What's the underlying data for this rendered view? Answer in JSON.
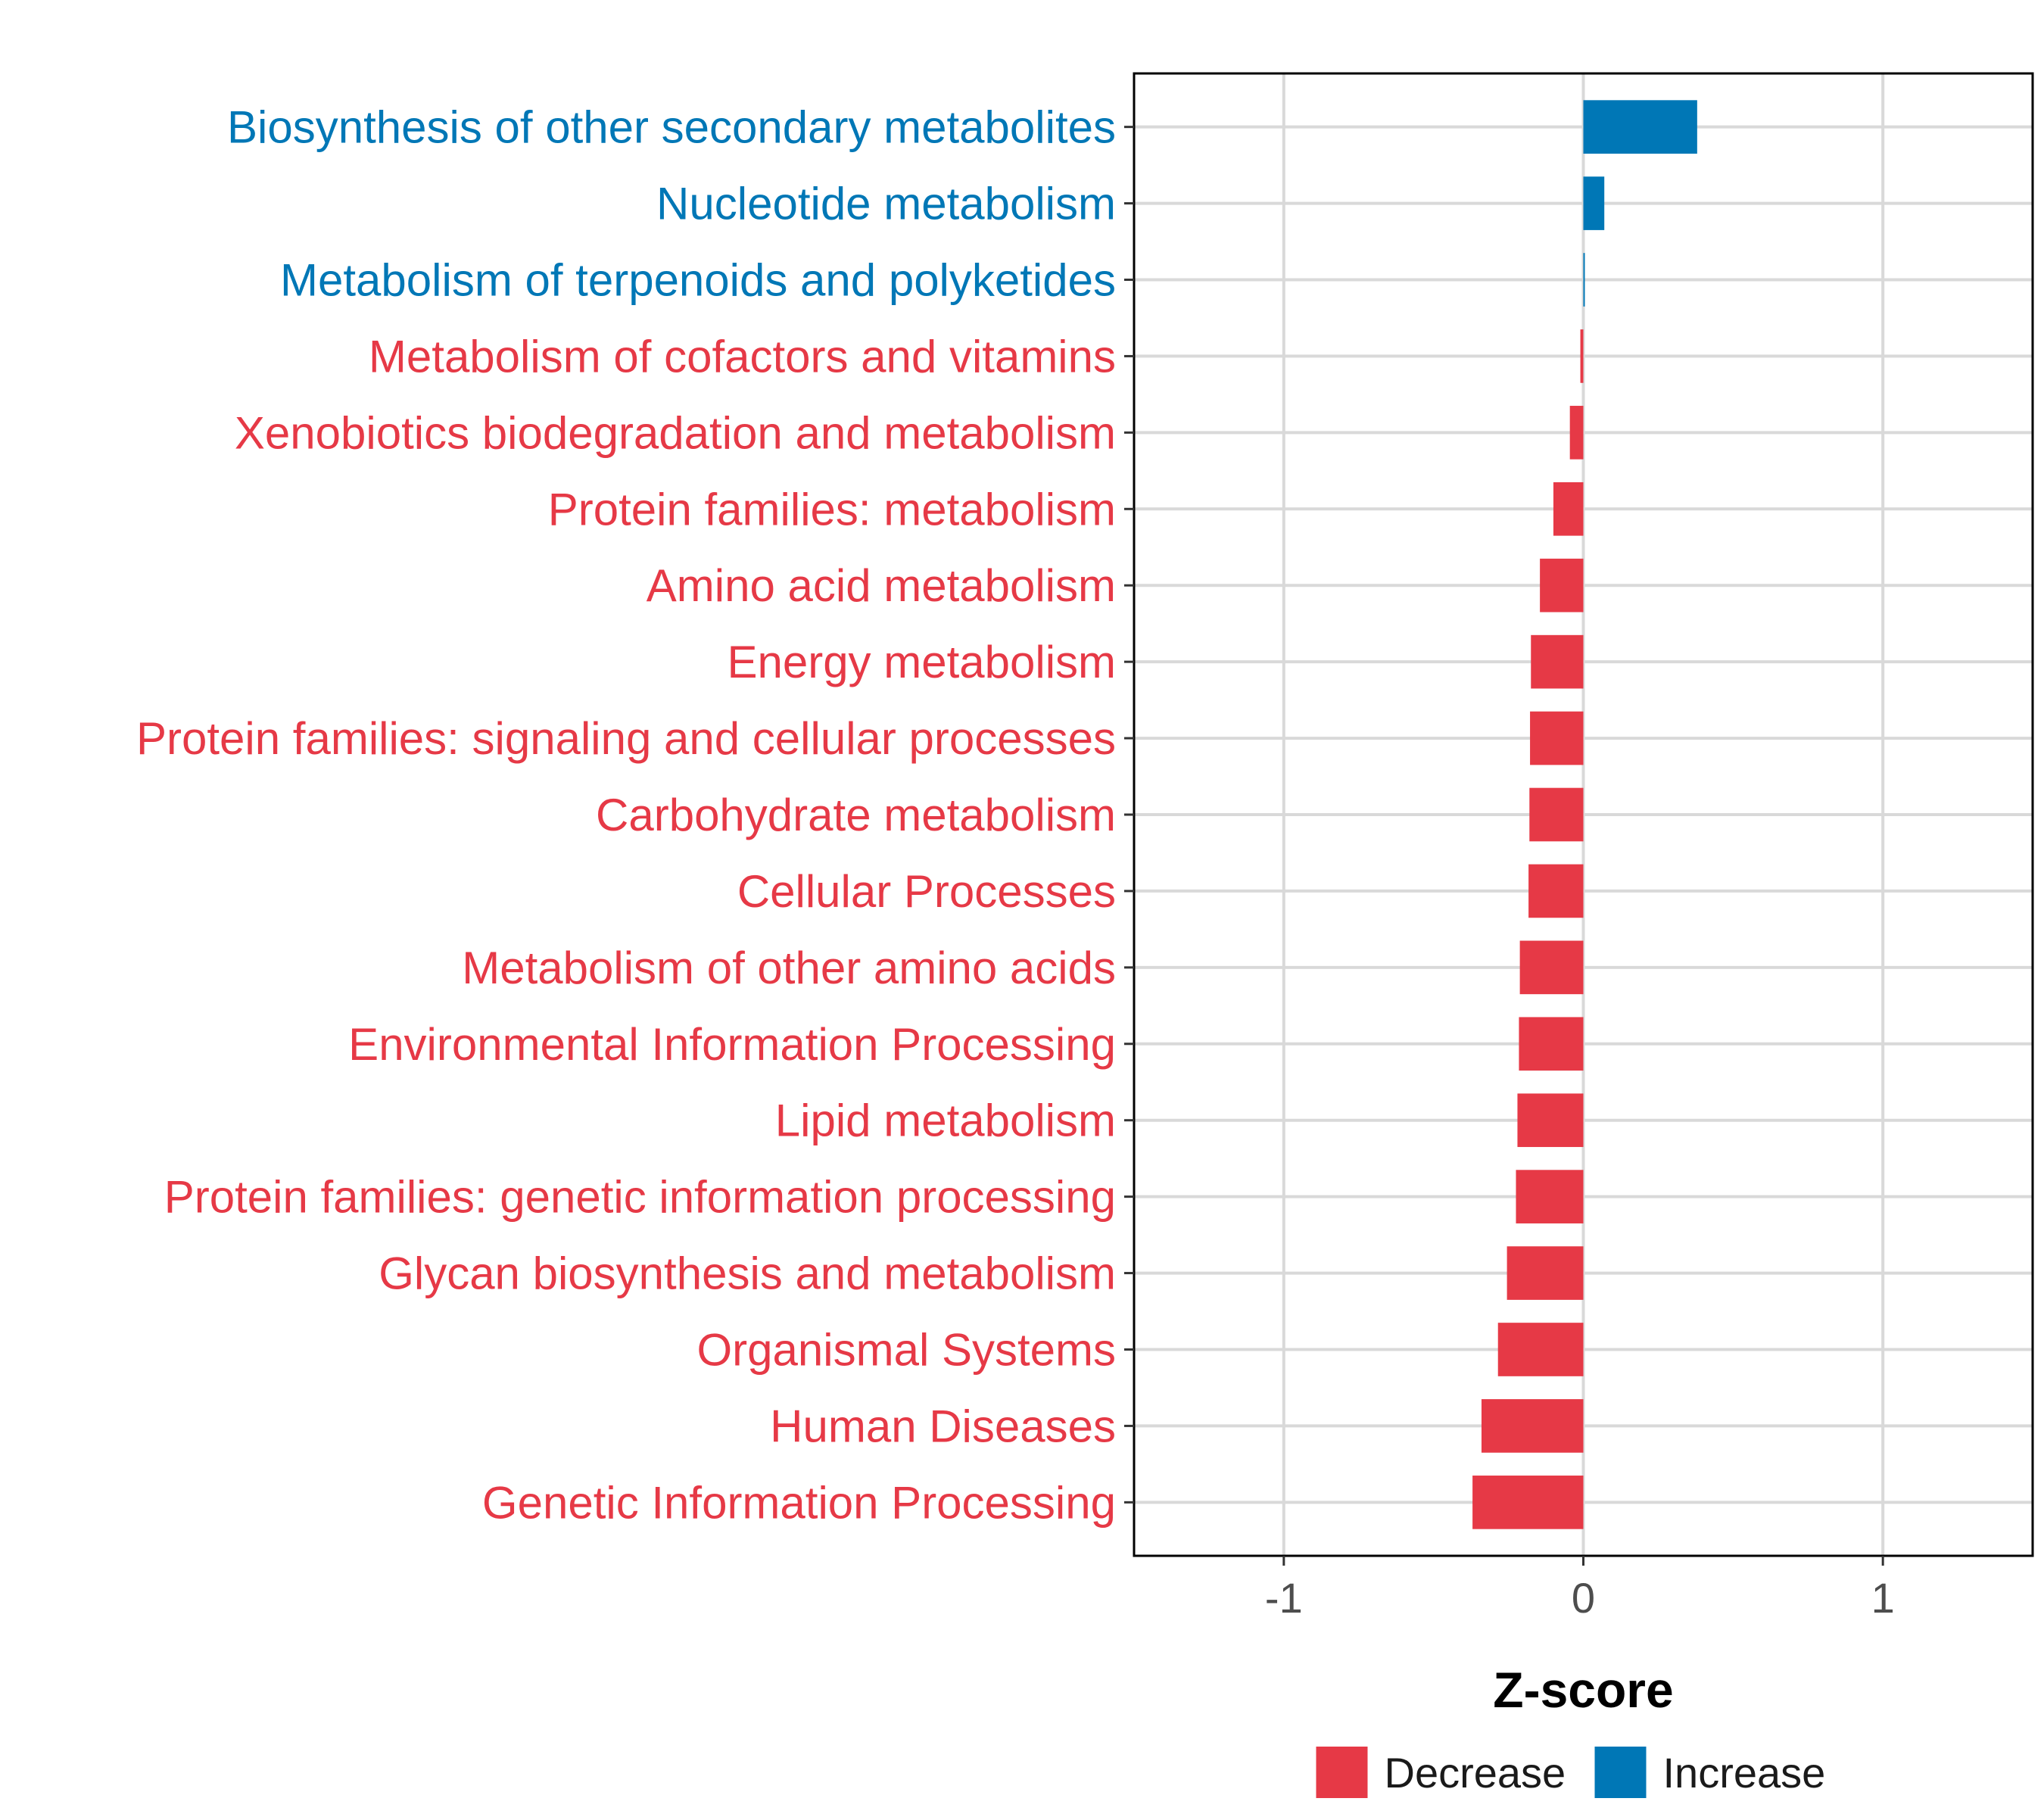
{
  "chart_data": {
    "type": "bar",
    "orientation": "horizontal",
    "xlabel": "Z-score",
    "xlim": [
      -1.5,
      1.5
    ],
    "xticks": [
      -1,
      0,
      1
    ],
    "xtick_labels": [
      "-1",
      "0",
      "1"
    ],
    "grid": true,
    "legend_position": "bottom",
    "colors": {
      "Decrease": "#e63946",
      "Increase": "#0077b6"
    },
    "legend": [
      {
        "name": "Decrease",
        "color": "#e63946"
      },
      {
        "name": "Increase",
        "color": "#0077b6"
      }
    ],
    "categories": [
      "Biosynthesis of other secondary metabolites",
      "Nucleotide metabolism",
      "Metabolism of terpenoids and polyketides",
      "Metabolism of cofactors and vitamins",
      "Xenobiotics biodegradation and metabolism",
      "Protein families: metabolism",
      "Amino acid metabolism",
      "Energy metabolism",
      "Protein families: signaling and cellular processes",
      "Carbohydrate metabolism",
      "Cellular Processes",
      "Metabolism of other amino acids",
      "Environmental Information Processing",
      "Lipid metabolism",
      "Protein families: genetic information processing",
      "Glycan biosynthesis and metabolism",
      "Organismal Systems",
      "Human Diseases",
      "Genetic Information Processing"
    ],
    "values": [
      0.38,
      0.07,
      0.005,
      -0.01,
      -0.045,
      -0.1,
      -0.145,
      -0.175,
      -0.178,
      -0.18,
      -0.183,
      -0.212,
      -0.215,
      -0.22,
      -0.225,
      -0.255,
      -0.285,
      -0.34,
      -0.37
    ],
    "direction": [
      "Increase",
      "Increase",
      "Increase",
      "Decrease",
      "Decrease",
      "Decrease",
      "Decrease",
      "Decrease",
      "Decrease",
      "Decrease",
      "Decrease",
      "Decrease",
      "Decrease",
      "Decrease",
      "Decrease",
      "Decrease",
      "Decrease",
      "Decrease",
      "Decrease"
    ]
  }
}
